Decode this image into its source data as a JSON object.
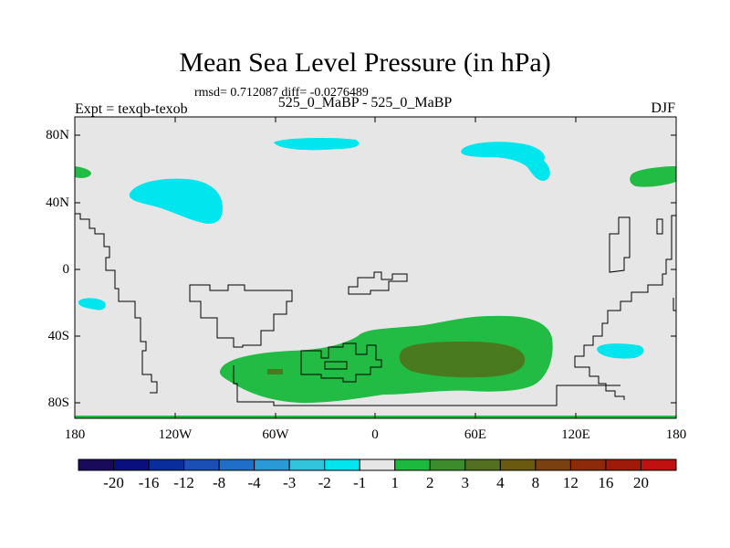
{
  "title": "Mean Sea Level Pressure (in hPa)",
  "stats": "rmsd= 0.712087 diff= -0.0276489",
  "left_string": "Expt = texqb-texob",
  "center_string": "525_0_MaBP - 525_0_MaBP",
  "right_string": "DJF",
  "y_ticks": [
    "80N",
    "40N",
    "0",
    "40S",
    "80S"
  ],
  "x_ticks": [
    "180",
    "120W",
    "60W",
    "0",
    "60E",
    "120E",
    "180"
  ],
  "colorbar": {
    "labels": [
      "-20",
      "-16",
      "-12",
      "-8",
      "-4",
      "-3",
      "-2",
      "-1",
      "1",
      "2",
      "3",
      "4",
      "8",
      "12",
      "16",
      "20"
    ],
    "colors": [
      "#1a0a5c",
      "#0a0f80",
      "#0a2d9e",
      "#1a4fb6",
      "#1f6fc8",
      "#2a9ad6",
      "#32c3dd",
      "#00e5ee",
      "#e6e6e6",
      "#1cba3c",
      "#3c8c2c",
      "#527020",
      "#6a5a10",
      "#7a4010",
      "#8c2a0a",
      "#a01a0a",
      "#c01010"
    ]
  },
  "map_colors": {
    "background": "#e6e6e6",
    "cyan": "#00e5ee",
    "green": "#22bb44",
    "dark_green": "#4a7a20",
    "brown": "#6a5a10",
    "coast": "#000000"
  }
}
